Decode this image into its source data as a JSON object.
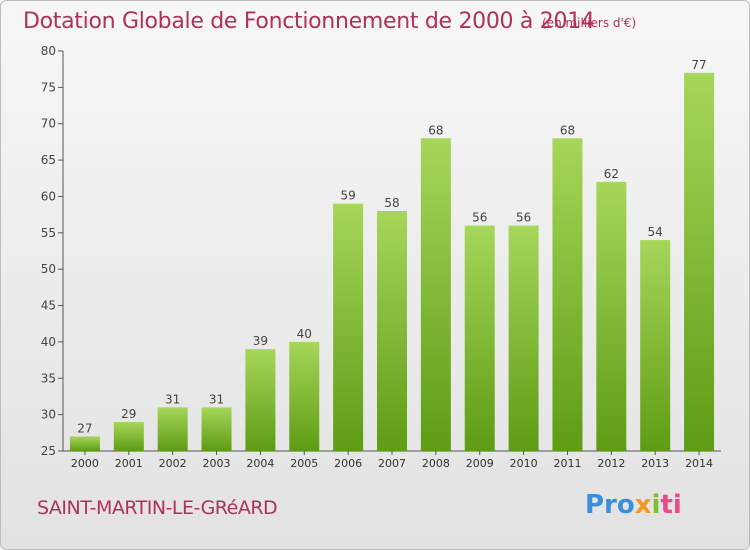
{
  "header": {
    "title": "Dotation Globale de Fonctionnement de 2000 à 2014",
    "subtitle": "(en milliers d'€)"
  },
  "footer": {
    "commune": "SAINT-MARTIN-LE-GRéARD",
    "logo": "Proxiti"
  },
  "colors": {
    "title": "#b0305a",
    "bar_light": "#a6d65a",
    "bar_dark": "#5e9c14",
    "axis": "#555555",
    "grid_tick": "#555555"
  },
  "chart_data": {
    "type": "bar",
    "title": "Dotation Globale de Fonctionnement de 2000 à 2014",
    "subtitle": "(en milliers d'€)",
    "categories": [
      "2000",
      "2001",
      "2002",
      "2003",
      "2004",
      "2005",
      "2006",
      "2007",
      "2008",
      "2009",
      "2010",
      "2011",
      "2012",
      "2013",
      "2014"
    ],
    "values": [
      27,
      29,
      31,
      31,
      39,
      40,
      59,
      58,
      68,
      56,
      56,
      68,
      62,
      54,
      77
    ],
    "ylim": [
      25,
      80
    ],
    "yticks": [
      25,
      30,
      35,
      40,
      45,
      50,
      55,
      60,
      65,
      70,
      75,
      80
    ],
    "grid": false,
    "data_labels": true
  }
}
